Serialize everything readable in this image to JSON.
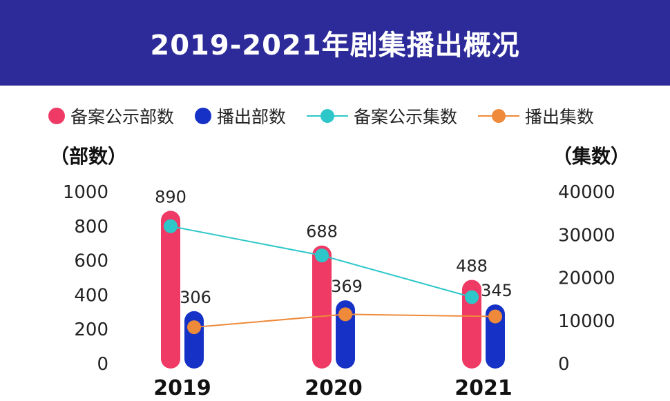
{
  "header": {
    "title": "2019-2021年剧集播出概况"
  },
  "colors": {
    "header_bg": "#2d2b9a",
    "record_bar": "#ee3a64",
    "aired_bar": "#1632c6",
    "record_line": "#2ec7c9",
    "aired_line": "#ee8a3a"
  },
  "legend": [
    {
      "label": "备案公示部数",
      "kind": "dot",
      "color": "#ee3a64"
    },
    {
      "label": "播出部数",
      "kind": "dot",
      "color": "#1632c6"
    },
    {
      "label": "备案公示集数",
      "kind": "line",
      "color": "#2ec7c9"
    },
    {
      "label": "播出集数",
      "kind": "line",
      "color": "#ee8a3a"
    }
  ],
  "axes": {
    "left_title": "（部数）",
    "right_title": "（集数）"
  },
  "chart_data": {
    "type": "bar",
    "title": "2019-2021年剧集播出概况",
    "categories": [
      "2019",
      "2020",
      "2021"
    ],
    "left_axis": {
      "label": "（部数）",
      "range": [
        0,
        1000
      ],
      "ticks": [
        0,
        200,
        400,
        600,
        800,
        1000
      ]
    },
    "right_axis": {
      "label": "（集数）",
      "range": [
        0,
        40000
      ],
      "ticks": [
        0,
        10000,
        20000,
        30000,
        40000
      ]
    },
    "series": [
      {
        "name": "备案公示部数",
        "type": "bar",
        "axis": "left",
        "values": [
          890,
          688,
          488
        ]
      },
      {
        "name": "播出部数",
        "type": "bar",
        "axis": "left",
        "values": [
          306,
          369,
          345
        ]
      },
      {
        "name": "备案公示集数",
        "type": "line",
        "axis": "right",
        "values": [
          32000,
          25200,
          15500
        ]
      },
      {
        "name": "播出集数",
        "type": "line",
        "axis": "right",
        "values": [
          8500,
          11500,
          11000
        ]
      }
    ],
    "legend_position": "top",
    "grid": false
  }
}
